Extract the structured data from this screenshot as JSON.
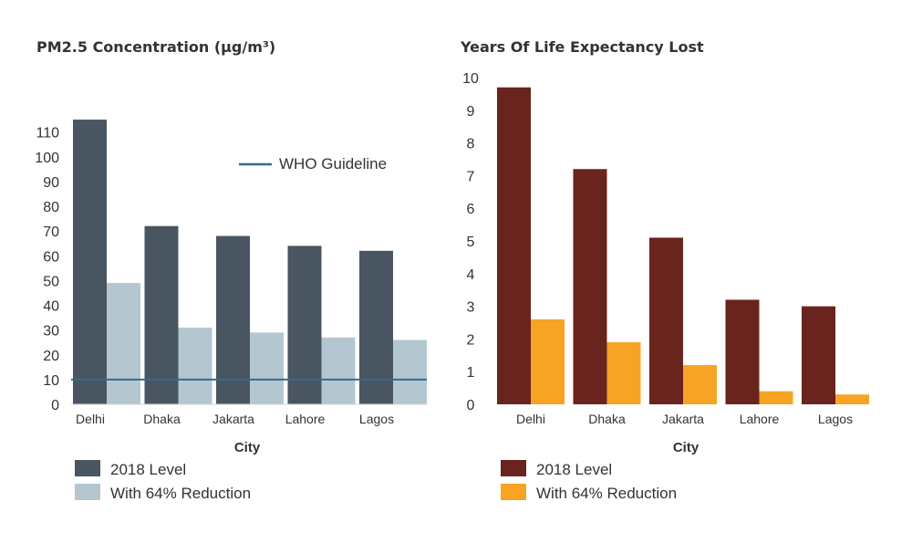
{
  "chart_data": [
    {
      "type": "bar",
      "title": "PM2.5 Concentration (µg/m³)",
      "xlabel": "City",
      "ylabel": "",
      "categories": [
        "Delhi",
        "Dhaka",
        "Jakarta",
        "Lahore",
        "Lagos"
      ],
      "series": [
        {
          "name": "2018 Level",
          "values": [
            115,
            72,
            68,
            64,
            62
          ],
          "color": "#4a5562"
        },
        {
          "name": "With 64% Reduction",
          "values": [
            49,
            31,
            29,
            27,
            26
          ],
          "color": "#b4c7d1"
        }
      ],
      "yticks": [
        0,
        10,
        20,
        30,
        40,
        50,
        60,
        70,
        80,
        90,
        100,
        110
      ],
      "ylim": [
        0,
        120
      ],
      "reference_line": {
        "name": "WHO Guideline",
        "value": 10,
        "color": "#2f6f86"
      },
      "grid": false,
      "legend": "bottom-left"
    },
    {
      "type": "bar",
      "title": "Years Of Life Expectancy Lost",
      "xlabel": "City",
      "ylabel": "",
      "categories": [
        "Delhi",
        "Dhaka",
        "Jakarta",
        "Lahore",
        "Lagos"
      ],
      "series": [
        {
          "name": "2018 Level",
          "values": [
            9.7,
            7.2,
            5.1,
            3.2,
            3.0
          ],
          "color": "#6a241e"
        },
        {
          "name": "With 64% Reduction",
          "values": [
            2.6,
            1.9,
            1.2,
            0.4,
            0.3
          ],
          "color": "#f7a324"
        }
      ],
      "yticks": [
        0,
        1,
        2,
        3,
        4,
        5,
        6,
        7,
        8,
        9,
        10
      ],
      "ylim": [
        0,
        10
      ],
      "grid": false,
      "legend": "bottom-left"
    }
  ]
}
